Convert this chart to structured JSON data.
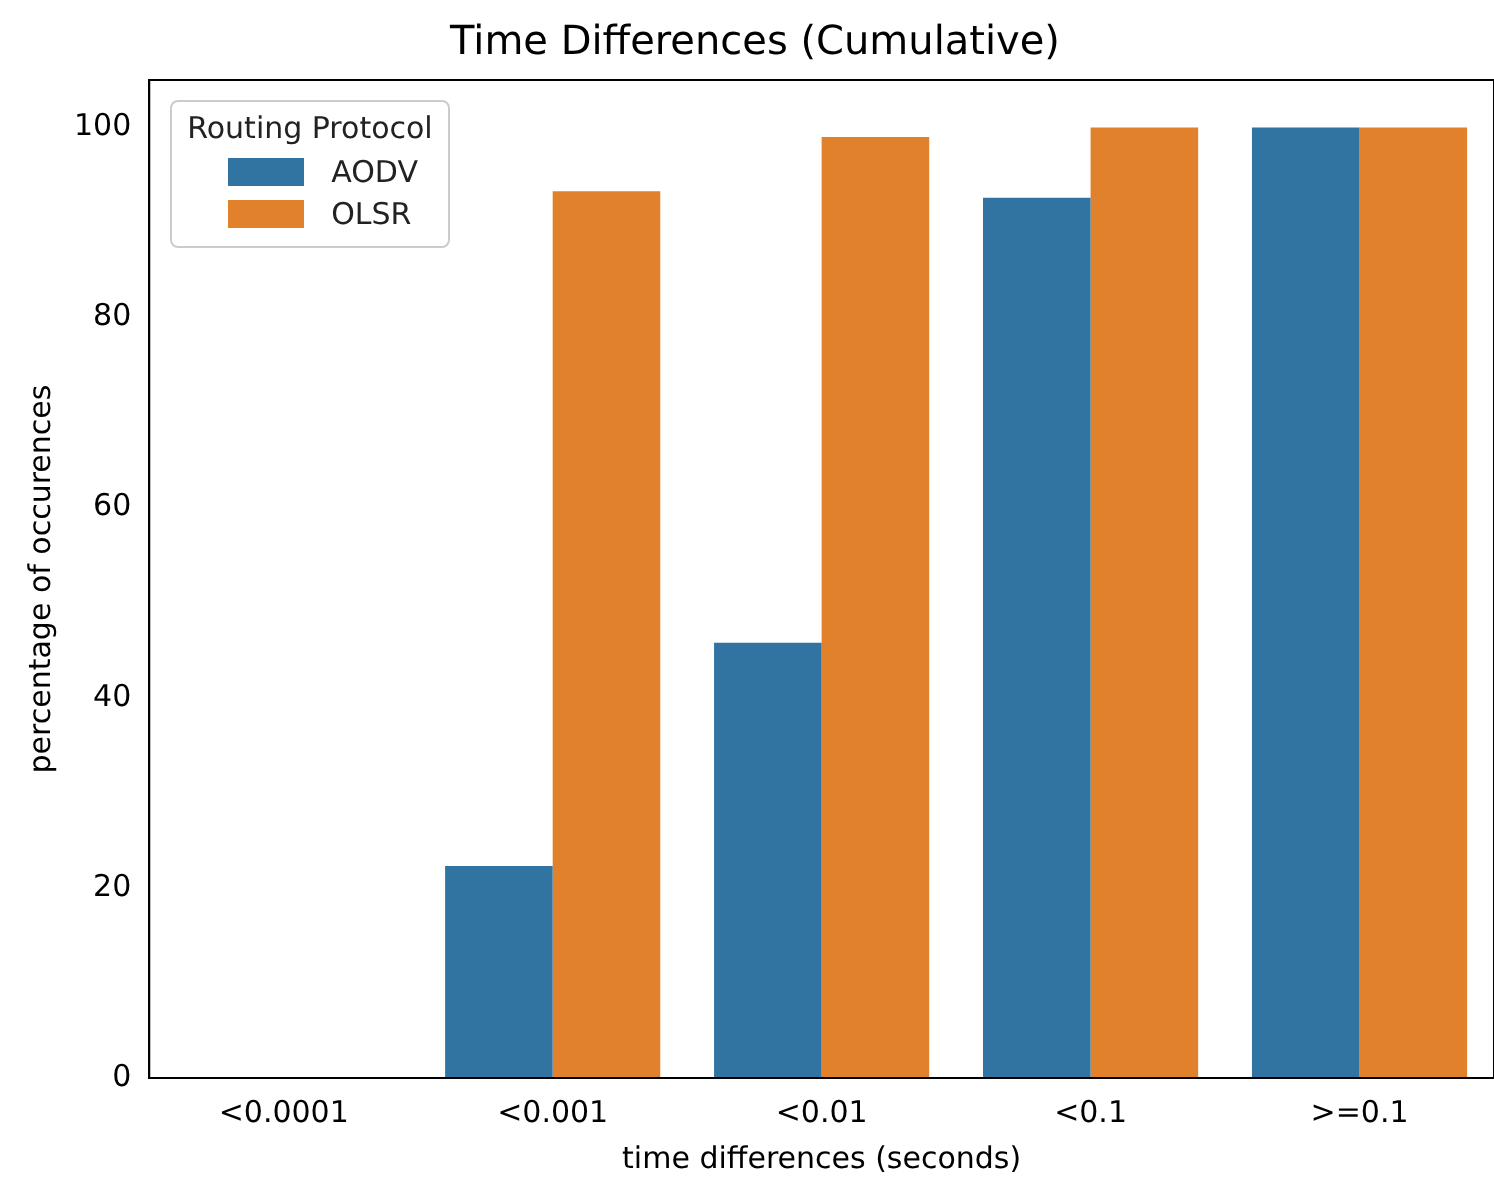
{
  "chart_data": {
    "type": "bar",
    "title": "Time Differences (Cumulative)",
    "xlabel": "time differences (seconds)",
    "ylabel": "percentage of occurences",
    "legend_title": "Routing Protocol",
    "legend": "top left",
    "grid": false,
    "categories": [
      "<0.0001",
      "<0.001",
      "<0.01",
      "<0.1",
      ">=0.1"
    ],
    "series": [
      {
        "name": "AODV",
        "color": "#3274a1",
        "values": [
          0,
          22.3,
          45.8,
          92.6,
          100
        ]
      },
      {
        "name": "OLSR",
        "color": "#e1812c",
        "values": [
          0,
          93.3,
          99.0,
          100,
          100
        ]
      }
    ],
    "ylim": [
      0,
      105
    ],
    "yticks": [
      0,
      20,
      40,
      60,
      80,
      100
    ]
  }
}
